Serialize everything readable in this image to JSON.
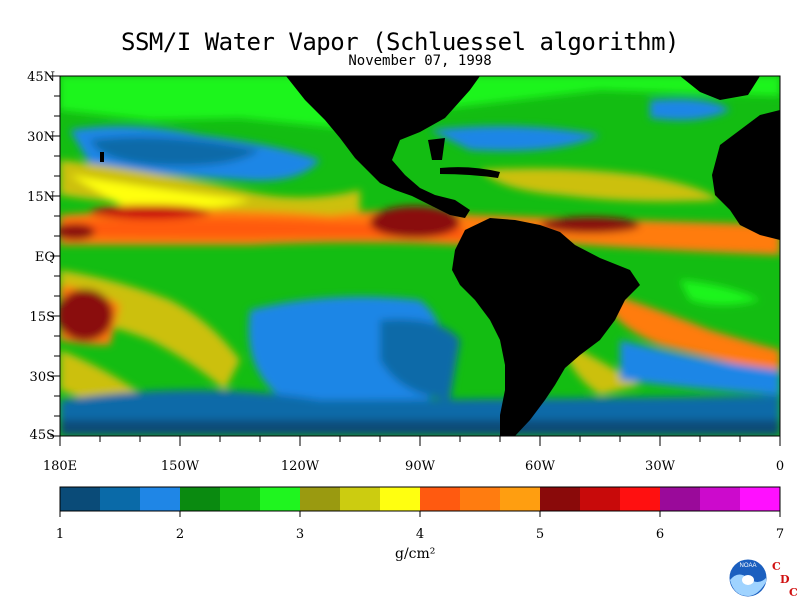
{
  "title": "SSM/I Water Vapor (Schluessel algorithm)",
  "date": "November 07, 1998",
  "lat_labels": [
    "45N",
    "30N",
    "15N",
    "EQ",
    "15S",
    "30S",
    "45S"
  ],
  "lon_labels": [
    "180E",
    "150W",
    "120W",
    "90W",
    "60W",
    "30W",
    "0"
  ],
  "colorbar": {
    "min": 1,
    "max": 7,
    "tick_labels": [
      "1",
      "2",
      "3",
      "4",
      "5",
      "6",
      "7"
    ],
    "unit": "g/cm²",
    "colors": [
      "#0a4b78",
      "#0a6aa8",
      "#1f86e6",
      "#0a8a10",
      "#13bd12",
      "#1ff51f",
      "#9a9a10",
      "#cccc10",
      "#ffff10",
      "#ff5a10",
      "#ff7c10",
      "#ff9e10",
      "#8a0a0a",
      "#c80a0a",
      "#ff1010",
      "#9a0a9a",
      "#cc0acc",
      "#ff10ff"
    ]
  },
  "logo": {
    "name": "NOAA",
    "letters": [
      "C",
      "D",
      "C"
    ]
  },
  "colors": {
    "land": "#000000",
    "frame": "#000000"
  }
}
